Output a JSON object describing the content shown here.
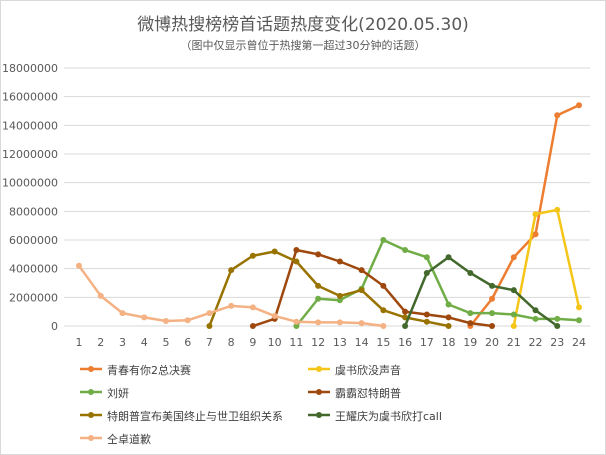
{
  "chart_data": {
    "type": "line",
    "title": "微博热搜榜榜首话题热度变化(2020.05.30)",
    "subtitle": "（图中仅显示曾位于热搜第一超过30分钟的话题）",
    "x": [
      1,
      2,
      3,
      4,
      5,
      6,
      7,
      8,
      9,
      10,
      11,
      12,
      13,
      14,
      15,
      16,
      17,
      18,
      19,
      20,
      21,
      22,
      23,
      24
    ],
    "ylim": [
      0,
      18000000
    ],
    "yticks": [
      "0",
      "2000000",
      "4000000",
      "6000000",
      "8000000",
      "10000000",
      "12000000",
      "14000000",
      "16000000",
      "18000000"
    ],
    "grid": true,
    "legend_position": "bottom",
    "series": [
      {
        "name": "青春有你2总决赛",
        "color": "#ED7D31",
        "values": [
          null,
          null,
          null,
          null,
          null,
          null,
          null,
          null,
          null,
          null,
          null,
          null,
          null,
          null,
          null,
          null,
          null,
          null,
          0,
          1900000,
          4800000,
          6400000,
          14700000,
          15400000
        ]
      },
      {
        "name": "虞书欣没声音",
        "color": "#F5C518",
        "values": [
          null,
          null,
          null,
          null,
          null,
          null,
          null,
          null,
          null,
          null,
          null,
          null,
          null,
          null,
          null,
          null,
          null,
          null,
          null,
          null,
          0,
          7800000,
          8100000,
          1300000
        ]
      },
      {
        "name": "刘妍",
        "color": "#70AD47",
        "values": [
          null,
          null,
          null,
          null,
          null,
          null,
          null,
          null,
          null,
          null,
          0,
          1900000,
          1800000,
          2600000,
          6000000,
          5300000,
          4800000,
          1500000,
          900000,
          900000,
          800000,
          500000,
          500000,
          400000
        ]
      },
      {
        "name": "霸霸怼特朗普",
        "color": "#9E480E",
        "values": [
          null,
          null,
          null,
          null,
          null,
          null,
          null,
          null,
          0,
          500000,
          5300000,
          5000000,
          4500000,
          3900000,
          2800000,
          1000000,
          800000,
          600000,
          200000,
          0,
          null,
          null,
          null,
          null
        ]
      },
      {
        "name": "特朗普宣布美国终止与世卫组织关系",
        "color": "#997300",
        "values": [
          null,
          null,
          null,
          null,
          null,
          null,
          0,
          3900000,
          4900000,
          5200000,
          4500000,
          2800000,
          2100000,
          2500000,
          1100000,
          600000,
          300000,
          0,
          null,
          null,
          null,
          null,
          null,
          null
        ]
      },
      {
        "name": "王耀庆为虞书欣打call",
        "color": "#43682B",
        "values": [
          null,
          null,
          null,
          null,
          null,
          null,
          null,
          null,
          null,
          null,
          null,
          null,
          null,
          null,
          null,
          0,
          3700000,
          4800000,
          3700000,
          2800000,
          2500000,
          1100000,
          0,
          null
        ]
      },
      {
        "name": "仝卓道歉",
        "color": "#F4B183",
        "values": [
          4200000,
          2100000,
          900000,
          600000,
          350000,
          400000,
          900000,
          1400000,
          1300000,
          700000,
          300000,
          250000,
          250000,
          200000,
          0,
          null,
          null,
          null,
          null,
          null,
          null,
          null,
          null,
          null
        ]
      }
    ]
  }
}
